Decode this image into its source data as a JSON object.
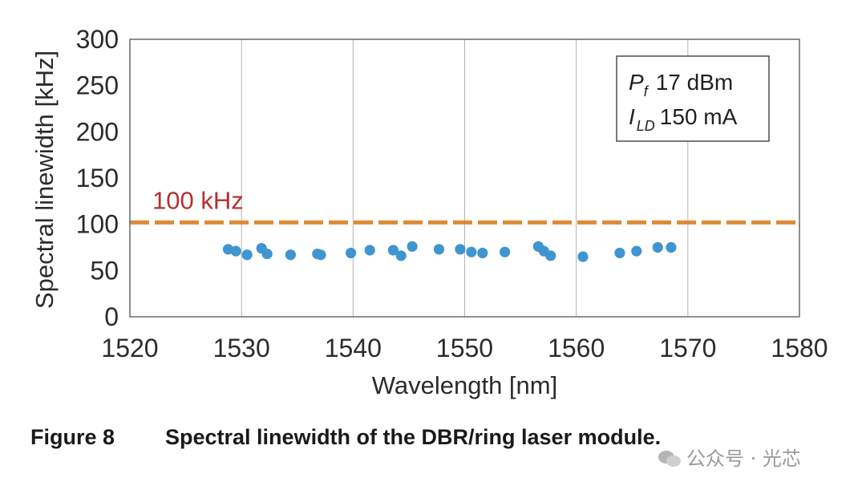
{
  "chart_data": {
    "type": "scatter",
    "xlabel": "Wavelength [nm]",
    "ylabel": "Spectral linewidth [kHz]",
    "xlim": [
      1520,
      1580
    ],
    "ylim": [
      0,
      300
    ],
    "xticks": [
      1520,
      1530,
      1540,
      1550,
      1560,
      1570,
      1580
    ],
    "yticks": [
      0,
      50,
      100,
      150,
      200,
      250,
      300
    ],
    "grid": "vertical",
    "colors": {
      "points": "#3f95cf",
      "reference": "#de8a34",
      "reference_label": "#b5302f"
    },
    "reference_line": {
      "y": 102,
      "label": "100 kHz"
    },
    "legend": {
      "placement": "top-right",
      "lines": [
        {
          "symbol": "P",
          "sub": "f",
          "value": "17 dBm"
        },
        {
          "symbol": "I",
          "sub": "LD",
          "value": "150 mA"
        }
      ]
    },
    "series": [
      {
        "name": "DBR/ring laser module",
        "x": [
          1528.8,
          1529.5,
          1530.5,
          1531.8,
          1532.3,
          1534.4,
          1536.8,
          1537.1,
          1539.8,
          1541.5,
          1543.6,
          1544.3,
          1545.3,
          1547.7,
          1549.6,
          1550.6,
          1551.6,
          1553.6,
          1556.6,
          1557.1,
          1557.7,
          1560.6,
          1563.9,
          1565.4,
          1567.3,
          1568.5
        ],
        "y": [
          73,
          71,
          67,
          74,
          68,
          67,
          68,
          67,
          69,
          72,
          72,
          66,
          76,
          73,
          73,
          70,
          69,
          70,
          76,
          71,
          66,
          65,
          69,
          71,
          75,
          75
        ]
      }
    ]
  },
  "caption": {
    "number": "Figure 8",
    "text": "Spectral linewidth of the DBR/ring laser module."
  },
  "watermark": {
    "text": "公众号 · 光芯"
  }
}
